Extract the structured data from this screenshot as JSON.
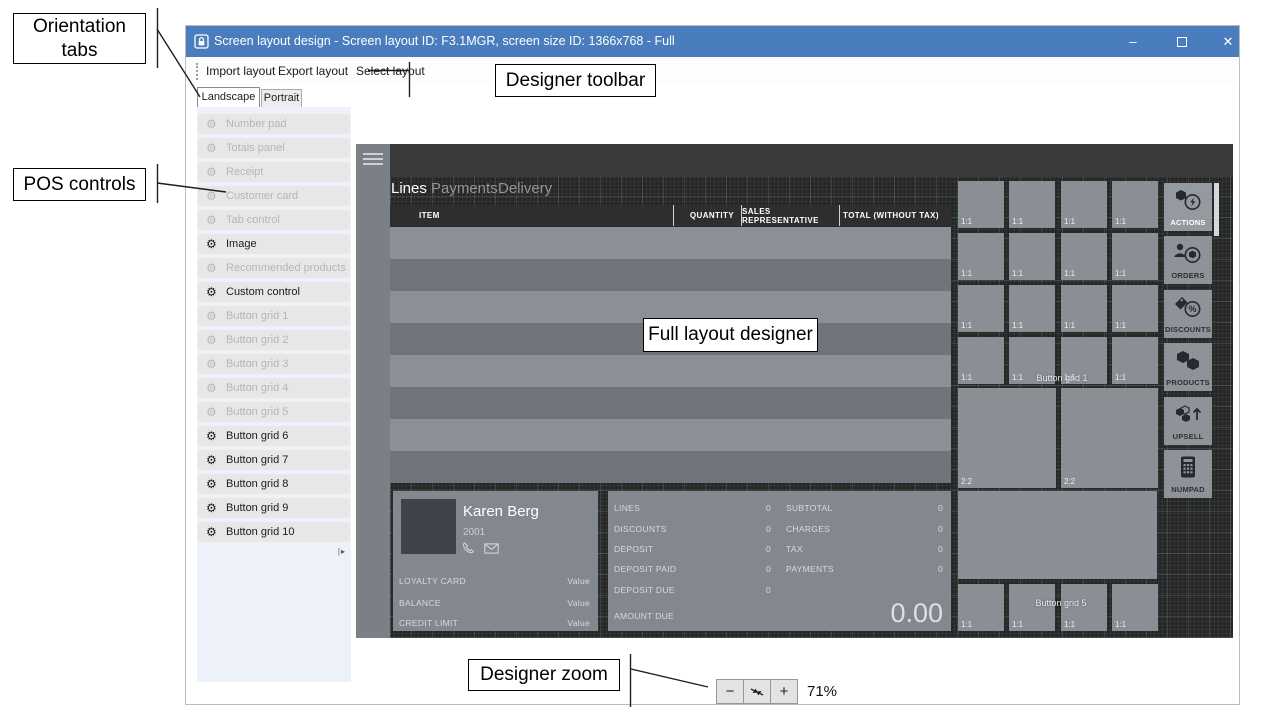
{
  "annotations": {
    "orientation_tabs_line1": "Orientation",
    "orientation_tabs_line2": "tabs",
    "pos_controls": "POS controls",
    "designer_toolbar": "Designer toolbar",
    "full_layout_designer": "Full layout designer",
    "designer_zoom": "Designer zoom"
  },
  "window": {
    "title": "Screen layout design - Screen layout ID: F3.1MGR, screen size ID: 1366x768 - Full",
    "controls": {
      "minimize": "–",
      "close": "✕"
    },
    "toolbar": {
      "items": [
        "Import layout",
        "Export layout",
        "Select layout"
      ]
    },
    "orientation_tabs": [
      {
        "label": "Landscape",
        "selected": true
      },
      {
        "label": "Portrait",
        "selected": false
      }
    ]
  },
  "sidebar": {
    "items": [
      {
        "label": "Number pad",
        "enabled": false
      },
      {
        "label": "Totals panel",
        "enabled": false
      },
      {
        "label": "Receipt",
        "enabled": false
      },
      {
        "label": "Customer card",
        "enabled": false
      },
      {
        "label": "Tab control",
        "enabled": false
      },
      {
        "label": "Image",
        "enabled": true
      },
      {
        "label": "Recommended products",
        "enabled": false
      },
      {
        "label": "Custom control",
        "enabled": true
      },
      {
        "label": "Button grid 1",
        "enabled": false
      },
      {
        "label": "Button grid 2",
        "enabled": false
      },
      {
        "label": "Button grid 3",
        "enabled": false
      },
      {
        "label": "Button grid 4",
        "enabled": false
      },
      {
        "label": "Button grid 5",
        "enabled": false
      },
      {
        "label": "Button grid 6",
        "enabled": true
      },
      {
        "label": "Button grid 7",
        "enabled": true
      },
      {
        "label": "Button grid 8",
        "enabled": true
      },
      {
        "label": "Button grid 9",
        "enabled": true
      },
      {
        "label": "Button grid 10",
        "enabled": true
      }
    ]
  },
  "designer": {
    "pos_nav_tabs": [
      {
        "label": "Lines",
        "active": true
      },
      {
        "label": "Payments",
        "active": false
      },
      {
        "label": "Delivery",
        "active": false
      }
    ],
    "lines_grid": {
      "headers": [
        "ITEM",
        "QUANTITY",
        "SALES REPRESENTATIVE",
        "TOTAL (WITHOUT TAX)"
      ],
      "empty_row_count": 8
    },
    "customer": {
      "name": "Karen Berg",
      "number": "2001",
      "fields": [
        {
          "label": "LOYALTY CARD",
          "value": "Value"
        },
        {
          "label": "BALANCE",
          "value": "Value"
        },
        {
          "label": "CREDIT LIMIT",
          "value": "Value"
        }
      ]
    },
    "totals": {
      "left": [
        {
          "label": "LINES",
          "value": "0"
        },
        {
          "label": "DISCOUNTS",
          "value": "0"
        },
        {
          "label": "DEPOSIT",
          "value": "0"
        },
        {
          "label": "DEPOSIT PAID",
          "value": "0"
        },
        {
          "label": "DEPOSIT DUE",
          "value": "0"
        }
      ],
      "right": [
        {
          "label": "SUBTOTAL",
          "value": "0"
        },
        {
          "label": "CHARGES",
          "value": "0"
        },
        {
          "label": "TAX",
          "value": "0"
        },
        {
          "label": "PAYMENTS",
          "value": "0"
        }
      ],
      "amount_due_label": "AMOUNT DUE",
      "amount_due_value": "0.00"
    },
    "button_grid_1": {
      "watermark": "Button grid 1",
      "small_cell_label": "1:1",
      "large_cell_label": "2:2",
      "small_cells": 16,
      "large_cells": 2
    },
    "button_grid_5": {
      "watermark": "Button grid 5",
      "small_cell_label": "1:1",
      "small_cells": 4
    },
    "nav_buttons": [
      {
        "label": "ACTIONS",
        "icon": "actions-icon",
        "selected": true
      },
      {
        "label": "ORDERS",
        "icon": "orders-icon",
        "selected": false
      },
      {
        "label": "DISCOUNTS",
        "icon": "discounts-icon",
        "selected": false
      },
      {
        "label": "PRODUCTS",
        "icon": "products-icon",
        "selected": false
      },
      {
        "label": "UPSELL",
        "icon": "upsell-icon",
        "selected": false
      },
      {
        "label": "NUMPAD",
        "icon": "numpad-icon",
        "selected": false
      }
    ]
  },
  "zoom_controls": {
    "zoom_out": "−",
    "zoom_in": "+",
    "level": "71%"
  },
  "colors": {
    "titlebar": "#4a7dbd",
    "sidebar_bg": "#edf2fa",
    "designer_bg": "#262626",
    "grid_accent": "#6ebeb4",
    "cell": "#898f95",
    "panel": "#82888e",
    "row_light": "#8a9096",
    "row_dark": "#6f757b"
  }
}
